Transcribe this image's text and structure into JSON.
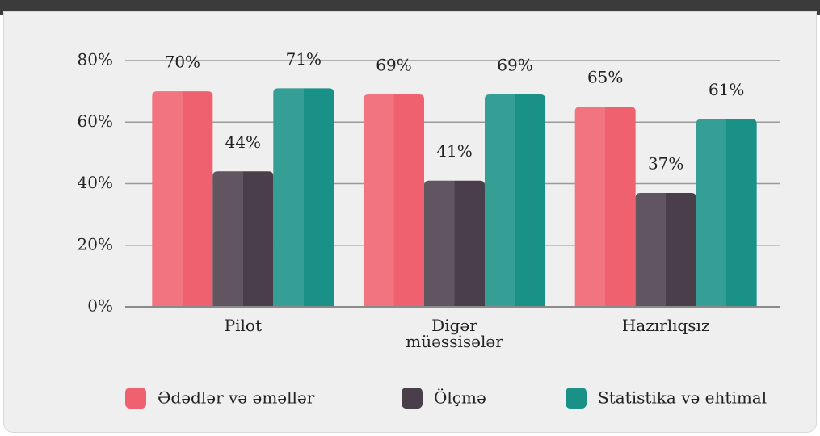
{
  "chart_data": {
    "type": "bar",
    "categories": [
      "Pilot",
      "Digər müəssisələr",
      "Hazırlıqsız"
    ],
    "series": [
      {
        "name": "Ədədlər və əməllər",
        "color": "#f0616f",
        "values": [
          70,
          69,
          65
        ],
        "value_labels": [
          "70%",
          "69%",
          "65%"
        ]
      },
      {
        "name": "Ölçmə",
        "color": "#4a3e4a",
        "values": [
          44,
          41,
          37
        ],
        "value_labels": [
          "44%",
          "41%",
          "37%"
        ]
      },
      {
        "name": "Statistika və ehtimal",
        "color": "#1a9187",
        "values": [
          71,
          69,
          61
        ],
        "value_labels": [
          "71%",
          "69%",
          "61%"
        ]
      }
    ],
    "ylim": [
      0,
      80
    ],
    "yticks": [
      {
        "value": 0,
        "label": "0%"
      },
      {
        "value": 20,
        "label": "20%"
      },
      {
        "value": 40,
        "label": "40%"
      },
      {
        "value": 60,
        "label": "60%"
      },
      {
        "value": 80,
        "label": "80%"
      }
    ],
    "grid": true
  }
}
